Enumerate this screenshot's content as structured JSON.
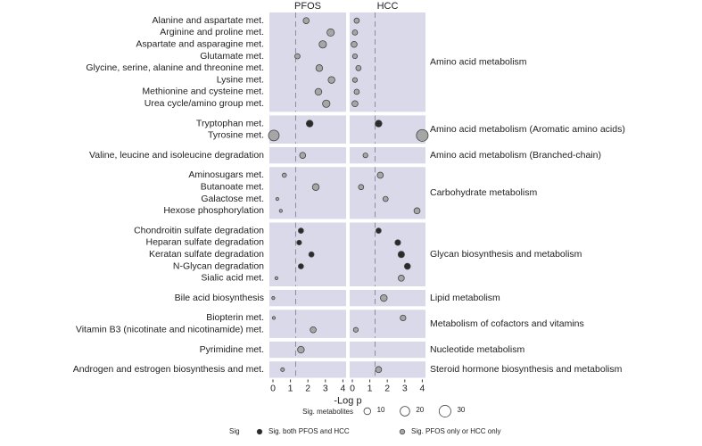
{
  "chart_data": {
    "type": "dot",
    "panels": [
      "PFOS",
      "HCC"
    ],
    "xlabel": "-Log p",
    "xlim": [
      0,
      4
    ],
    "xticks": [
      0,
      1,
      2,
      3,
      4
    ],
    "threshold": 1.3,
    "panel_color": "#d9d9ea",
    "groups": [
      {
        "name": "Amino acid metabolism",
        "categories": [
          "Alanine and aspartate met.",
          "Arginine and proline met.",
          "Aspartate and asparagine met.",
          "Glutamate met.",
          "Glycine, serine, alanine and threonine met.",
          "Lysine met.",
          "Methionine and cysteine met.",
          "Urea cycle/amino group met."
        ],
        "series": [
          {
            "values": [
              1.9,
              3.3,
              2.85,
              1.4,
              2.65,
              3.35,
              2.6,
              3.05
            ],
            "sizes": [
              8,
              12,
              12,
              6,
              10,
              10,
              10,
              12
            ],
            "colors": [
              "#a6a6a6",
              "#a6a6a6",
              "#a6a6a6",
              "#a6a6a6",
              "#a6a6a6",
              "#a6a6a6",
              "#a6a6a6",
              "#a6a6a6"
            ]
          },
          {
            "values": [
              0.25,
              0.15,
              0.1,
              0.15,
              0.35,
              0.15,
              0.25,
              0.15
            ],
            "sizes": [
              6,
              6,
              8,
              5,
              6,
              5,
              6,
              8
            ],
            "colors": [
              "#a6a6a6",
              "#a6a6a6",
              "#a6a6a6",
              "#a6a6a6",
              "#a6a6a6",
              "#a6a6a6",
              "#a6a6a6",
              "#a6a6a6"
            ]
          }
        ]
      },
      {
        "name": "Amino acid metabolism (Aromatic amino acids)",
        "categories": [
          "Tryptophan met.",
          "Tyrosine met."
        ],
        "series": [
          {
            "values": [
              2.1,
              0.05
            ],
            "sizes": [
              10,
              25
            ],
            "colors": [
              "#2b2b2b",
              "#a6a6a6"
            ]
          },
          {
            "values": [
              1.5,
              4.0
            ],
            "sizes": [
              10,
              30
            ],
            "colors": [
              "#2b2b2b",
              "#a6a6a6"
            ]
          }
        ]
      },
      {
        "name": "Amino acid metabolism (Branched-chain)",
        "categories": [
          "Valine, leucine and isoleucine degradation"
        ],
        "series": [
          {
            "values": [
              1.7
            ],
            "sizes": [
              8
            ],
            "colors": [
              "#a6a6a6"
            ]
          },
          {
            "values": [
              0.75
            ],
            "sizes": [
              5
            ],
            "colors": [
              "#a6a6a6"
            ]
          }
        ]
      },
      {
        "name": "Carbohydrate metabolism",
        "categories": [
          "Aminosugars met.",
          "Butanoate met.",
          "Galactose met.",
          "Hexose phosphorylation"
        ],
        "series": [
          {
            "values": [
              0.65,
              2.45,
              0.25,
              0.45
            ],
            "sizes": [
              4,
              10,
              2,
              2
            ],
            "colors": [
              "#a6a6a6",
              "#a6a6a6",
              "#a6a6a6",
              "#a6a6a6"
            ]
          },
          {
            "values": [
              1.6,
              0.5,
              1.9,
              3.7
            ],
            "sizes": [
              8,
              6,
              6,
              8
            ],
            "colors": [
              "#a6a6a6",
              "#a6a6a6",
              "#a6a6a6",
              "#a6a6a6"
            ]
          }
        ]
      },
      {
        "name": "Glycan biosynthesis and metabolism",
        "categories": [
          "Chondroitin sulfate degradation",
          "Heparan sulfate degradation",
          "Keratan sulfate degradation",
          "N-Glycan degradation",
          "Sialic acid met."
        ],
        "series": [
          {
            "values": [
              1.6,
              1.5,
              2.2,
              1.6,
              0.2
            ],
            "sizes": [
              6,
              5,
              6,
              6,
              2
            ],
            "colors": [
              "#2b2b2b",
              "#2b2b2b",
              "#2b2b2b",
              "#2b2b2b",
              "#a6a6a6"
            ]
          },
          {
            "values": [
              1.5,
              2.6,
              2.8,
              3.15,
              2.8
            ],
            "sizes": [
              6,
              7,
              9,
              8,
              8
            ],
            "colors": [
              "#2b2b2b",
              "#2b2b2b",
              "#2b2b2b",
              "#2b2b2b",
              "#a6a6a6"
            ]
          }
        ]
      },
      {
        "name": "Lipid metabolism",
        "categories": [
          "Bile acid biosynthesis"
        ],
        "series": [
          {
            "values": [
              0.02
            ],
            "sizes": [
              2
            ],
            "colors": [
              "#a6a6a6"
            ]
          },
          {
            "values": [
              1.8
            ],
            "sizes": [
              10
            ],
            "colors": [
              "#a6a6a6"
            ]
          }
        ]
      },
      {
        "name": "Metabolism of cofactors and vitamins",
        "categories": [
          "Biopterin met.",
          "Vitamin B3 (nicotinate and nicotinamide) met."
        ],
        "series": [
          {
            "values": [
              0.05,
              2.3
            ],
            "sizes": [
              2,
              8
            ],
            "colors": [
              "#a6a6a6",
              "#a6a6a6"
            ]
          },
          {
            "values": [
              2.9,
              0.2
            ],
            "sizes": [
              7,
              5
            ],
            "colors": [
              "#a6a6a6",
              "#a6a6a6"
            ]
          }
        ]
      },
      {
        "name": "Nucleotide metabolism",
        "categories": [
          "Pyrimidine met."
        ],
        "series": [
          {
            "values": [
              1.6
            ],
            "sizes": [
              10
            ],
            "colors": [
              "#a6a6a6"
            ]
          },
          {
            "values": [
              null
            ],
            "sizes": [
              null
            ],
            "colors": [
              null
            ]
          }
        ]
      },
      {
        "name": "Steroid hormone biosynthesis and metabolism",
        "categories": [
          "Androgen and estrogen biosynthesis and met."
        ],
        "series": [
          {
            "values": [
              0.55
            ],
            "sizes": [
              3
            ],
            "colors": [
              "#a6a6a6"
            ]
          },
          {
            "values": [
              1.5
            ],
            "sizes": [
              8
            ],
            "colors": [
              "#a6a6a6"
            ]
          }
        ]
      }
    ],
    "size_legend": {
      "title": "Sig. metabolites",
      "values": [
        10,
        20,
        30
      ]
    },
    "color_legend": {
      "title": "Sig",
      "entries": [
        {
          "name": "Sig. both PFOS and HCC",
          "color": "#2b2b2b"
        },
        {
          "name": "Sig. PFOS only or HCC only",
          "color": "#a6a6a6"
        }
      ]
    }
  }
}
